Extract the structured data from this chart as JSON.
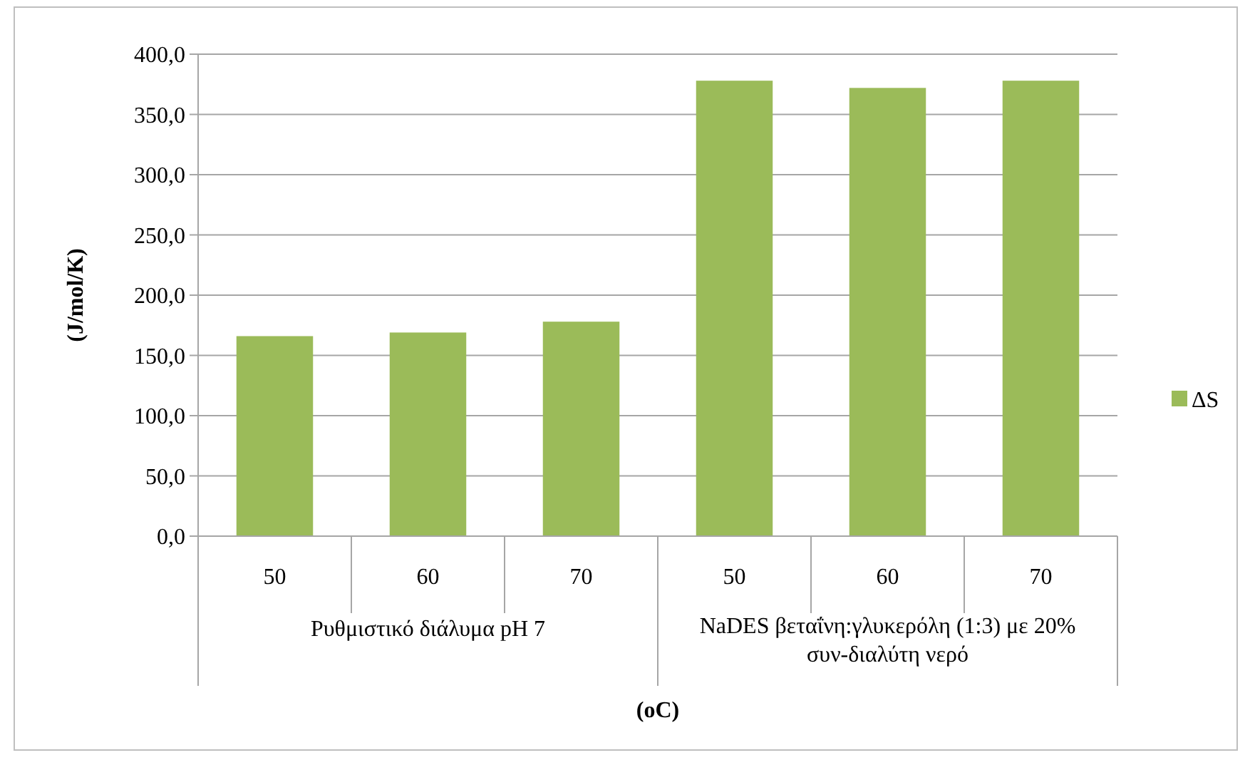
{
  "chart_data": {
    "type": "bar",
    "xlabel": "(oC)",
    "ylabel": "(J/mol/K)",
    "categories": [
      "50",
      "60",
      "70",
      "50",
      "60",
      "70"
    ],
    "series": [
      {
        "name": "ΔS",
        "color": "#9bbb59",
        "values": [
          166,
          169,
          178,
          378,
          372,
          378
        ]
      }
    ],
    "ylim": [
      0,
      400
    ],
    "yticks": [
      {
        "value": 0,
        "label": "0,0"
      },
      {
        "value": 50,
        "label": "50,0"
      },
      {
        "value": 100,
        "label": "100,0"
      },
      {
        "value": 150,
        "label": "150,0"
      },
      {
        "value": 200,
        "label": "200,0"
      },
      {
        "value": 250,
        "label": "250,0"
      },
      {
        "value": 300,
        "label": "300,0"
      },
      {
        "value": 350,
        "label": "350,0"
      },
      {
        "value": 400,
        "label": "400,0"
      }
    ],
    "grid": "y",
    "legend": "right",
    "annotations": [
      "Ρυθμιστικό διάλυμα pH 7",
      "NaDES  βεταΐνη:γλυκερόλη (1:3)  με 20% συν-διαλύτη νερό"
    ]
  }
}
